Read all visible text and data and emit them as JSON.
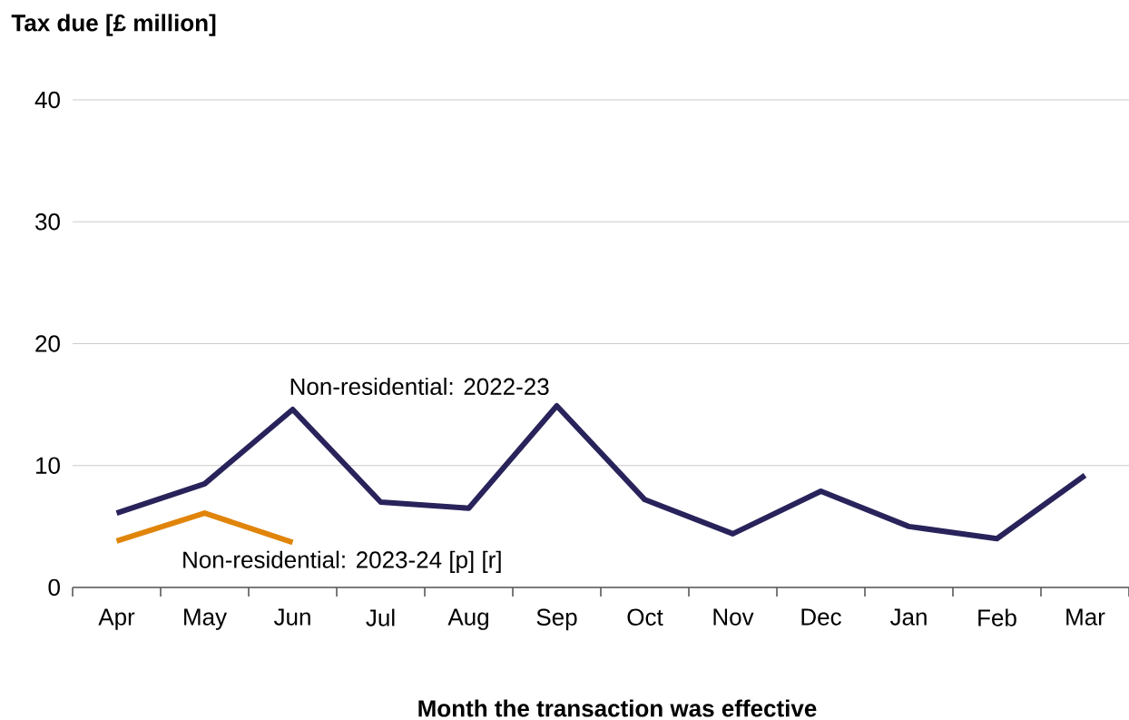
{
  "chart_data": {
    "type": "line",
    "ylabel": "Tax due [£ million]",
    "xlabel": "Month the transaction was effective",
    "categories": [
      "Apr",
      "May",
      "Jun",
      "Jul",
      "Aug",
      "Sep",
      "Oct",
      "Nov",
      "Dec",
      "Jan",
      "Feb",
      "Mar"
    ],
    "series": [
      {
        "name": "Non-residential: 2022-23",
        "color": "#28235a",
        "values": [
          6.1,
          8.5,
          14.6,
          7.0,
          6.5,
          14.9,
          7.2,
          4.4,
          7.9,
          5.0,
          4.0,
          9.2
        ]
      },
      {
        "name": "Non-residential: 2023-24 [p] [r]",
        "color": "#e0850a",
        "values": [
          3.8,
          6.1,
          3.7,
          null,
          null,
          null,
          null,
          null,
          null,
          null,
          null,
          null
        ]
      }
    ],
    "ylim": [
      0,
      40
    ],
    "yticks": [
      0,
      10,
      20,
      30,
      40
    ],
    "grid": "y",
    "legend": false,
    "marker": "none",
    "line_style": "solid"
  }
}
